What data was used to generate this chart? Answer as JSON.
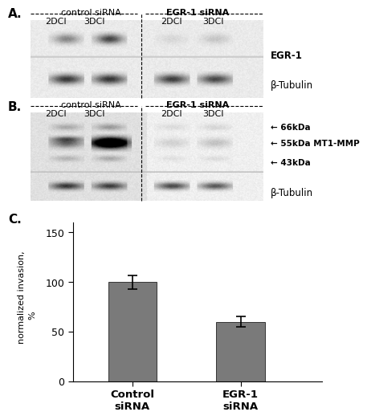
{
  "panel_A_label": "A.",
  "panel_B_label": "B.",
  "panel_C_label": "C.",
  "control_sirna_label": "control siRNA",
  "egr1_sirna_label": "EGR-1 siRNA",
  "col_labels": [
    "2DCI",
    "3DCI",
    "2DCI",
    "3DCI"
  ],
  "egr1_band_label": "EGR-1",
  "beta_tubulin_label": "β-Tubulin",
  "kda_labels": [
    "66kDa",
    "55kDa MT1-MMP",
    "43kDa"
  ],
  "bar_values": [
    100,
    60
  ],
  "bar_errors": [
    7,
    5
  ],
  "bar_color": "#7a7a7a",
  "bar_labels": [
    "Control\nsiRNA",
    "EGR-1\nsiRNA"
  ],
  "ylabel_line1": "normalized invasion,",
  "ylabel_line2": "%",
  "yticks": [
    0,
    50,
    100,
    150
  ],
  "ylim": [
    0,
    160
  ],
  "bg_color": "#ffffff"
}
